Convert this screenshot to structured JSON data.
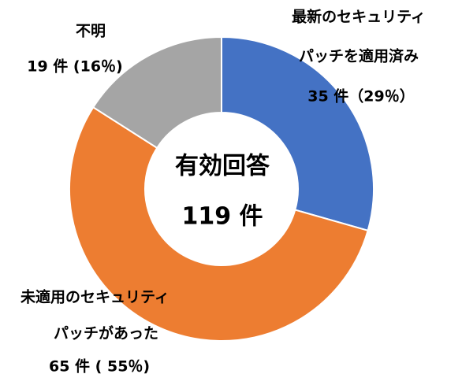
{
  "chart_data": {
    "type": "donut",
    "categories": [
      [
        "最新のセキュリティ",
        "パッチを適用済み"
      ],
      [
        "未適用のセキュリティ",
        "パッチがあった"
      ],
      [
        "不明"
      ]
    ],
    "values": [
      35,
      65,
      19
    ],
    "value_labels": [
      "35 件（29％）",
      "65 件 ( 55％)",
      "19 件 (16％)"
    ],
    "colors": [
      "#4472c4",
      "#ed7d31",
      "#a5a5a5"
    ],
    "center_text": [
      "有効回答",
      "119 件"
    ]
  }
}
